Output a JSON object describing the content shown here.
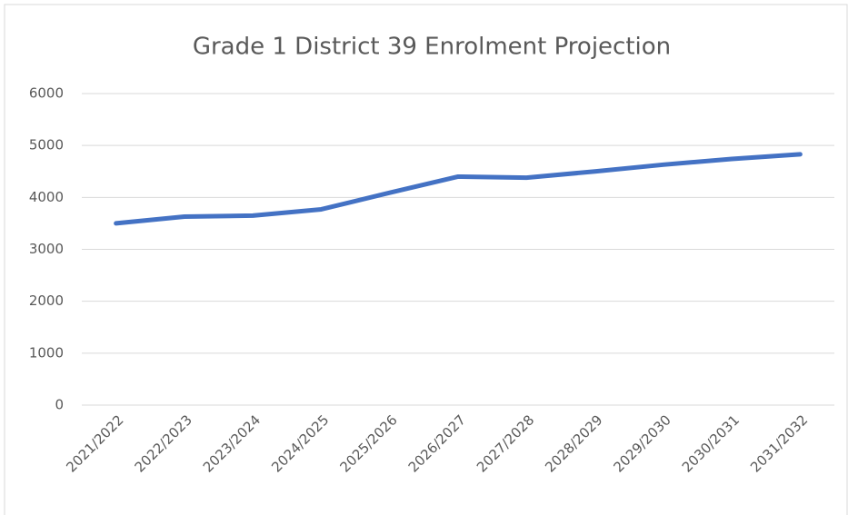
{
  "chart_data": {
    "type": "line",
    "title": "Grade 1 District 39 Enrolment Projection",
    "categories": [
      "2021/2022",
      "2022/2023",
      "2023/2024",
      "2024/2025",
      "2025/2026",
      "2026/2027",
      "2027/2028",
      "2028/2029",
      "2029/2030",
      "2030/2031",
      "2031/2032"
    ],
    "series": [
      {
        "color": "#4472c4",
        "values": [
          3500,
          3630,
          3650,
          3770,
          4090,
          4400,
          4380,
          4500,
          4630,
          4740,
          4830
        ]
      }
    ],
    "ylim": [
      0,
      6000
    ],
    "yticks": [
      0,
      1000,
      2000,
      3000,
      4000,
      5000,
      6000
    ],
    "grid": true
  }
}
